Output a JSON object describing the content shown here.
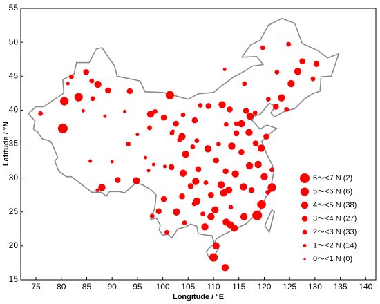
{
  "chart_data": {
    "type": "scatter",
    "xlabel": "Longitude / °E",
    "ylabel": "Latitude / °N",
    "xlim": [
      72,
      142
    ],
    "ylim": [
      15,
      55
    ],
    "xticks": [
      75,
      80,
      85,
      90,
      95,
      100,
      105,
      110,
      115,
      120,
      125,
      130,
      135,
      140
    ],
    "yticks": [
      15,
      20,
      25,
      30,
      35,
      40,
      45,
      50,
      55
    ],
    "legend": "lower right",
    "series": [
      {
        "name": "6～<7 N  (2)",
        "color": "#ff0000",
        "x": [
          118.6,
          80.3
        ],
        "values": [
          24.5,
          37.3
        ]
      },
      {
        "name": "5～<6 N  (6)",
        "color": "#ff0000",
        "x": [
          80.6,
          83.4,
          101.4,
          119.5,
          121.5,
          110
        ],
        "values": [
          41.3,
          41.9,
          42.2,
          26.1,
          28.6,
          18.3
        ]
      },
      {
        "name": "4～<5 N  (38)",
        "color": "#ff0000",
        "x": [
          97.6,
          87.2,
          88,
          112,
          113,
          115.9,
          117.1,
          118.8,
          114.3,
          113.3,
          110.3,
          108.3,
          106.7,
          104,
          106.5,
          108.9,
          113.6,
          117,
          119.3,
          112.3,
          126.6,
          125.3,
          123.4,
          120,
          115.5,
          111.7,
          103.8,
          102.7,
          110.5,
          117.2,
          119.4,
          116,
          114.1,
          112.5,
          109.5,
          111.5,
          104.5,
          94.8
        ],
        "values": [
          39.4,
          43.8,
          28.6,
          27.8,
          28.2,
          28.7,
          31.8,
          32,
          30.6,
          23.1,
          25.3,
          22.8,
          26.6,
          30.7,
          29.5,
          34.3,
          34.7,
          36.7,
          26.1,
          16.8,
          45.7,
          43.9,
          41.8,
          30.2,
          38,
          40.8,
          36.1,
          25,
          20,
          39.1,
          34.4,
          24.3,
          22.6,
          23.5,
          24.3,
          29,
          33.5,
          29.6
        ]
      },
      {
        "name": "3～<4 N  (27)",
        "color": "#ff0000",
        "x": [
          84.9,
          89.2,
          93.5,
          100.2,
          102.6,
          106.3,
          109,
          113.2,
          116.4,
          114.5,
          118.3,
          120.4,
          115.5,
          112.4,
          110.5,
          107,
          105.5,
          103.8,
          100.2,
          99.2,
          101.7,
          91.1,
          127.5,
          130.3,
          122.3,
          117.5,
          109.5
        ],
        "values": [
          45.6,
          42.9,
          42.8,
          38.9,
          38,
          38.5,
          40.6,
          40.1,
          39.9,
          36.6,
          35.1,
          36.1,
          33.8,
          31,
          32.6,
          31.3,
          28.8,
          27.3,
          26.9,
          25.1,
          31.6,
          29.7,
          47.2,
          46.8,
          40.5,
          28.2,
          27.5
        ]
      },
      {
        "name": "2～<3 N  (33)",
        "color": "#ff0000",
        "x": [
          75.9,
          86,
          82,
          86.2,
          93.2,
          97.4,
          101.8,
          98.5,
          104,
          107.4,
          111,
          106.7,
          105.9,
          112.5,
          114.5,
          118.2,
          120.8,
          124.4,
          129.6,
          124.8,
          119.7,
          122.5,
          116.1,
          106.2,
          104.3,
          100.8,
          97.9,
          107.9,
          113.4,
          121.5,
          120.7,
          108.5,
          103.3
        ],
        "values": [
          39.5,
          44.3,
          44.9,
          41.7,
          35,
          37.4,
          36.6,
          39.8,
          39.3,
          40.7,
          35,
          35.5,
          34.6,
          37.9,
          38,
          39.6,
          41.6,
          40.1,
          44.6,
          49.7,
          49.2,
          45.6,
          43.9,
          26.2,
          23.4,
          22,
          24.4,
          24.7,
          25.7,
          31.2,
          27.9,
          29.3,
          35.6
        ]
      },
      {
        "name": "1～<2 N  (14)",
        "color": "#ff0000",
        "x": [
          81.3,
          88.6,
          84.3,
          92.5,
          95,
          96.6,
          90,
          85.7,
          98.2,
          100.4,
          87.1,
          97.2,
          112.2,
          102
        ],
        "values": [
          43.9,
          39.1,
          39.9,
          39.8,
          36.4,
          33,
          32.4,
          32.5,
          32,
          31.7,
          28.2,
          31.1,
          46,
          36.9
        ]
      },
      {
        "name": "0～<1 N  (0)",
        "color": "#ff0000",
        "x": [],
        "values": []
      }
    ]
  }
}
